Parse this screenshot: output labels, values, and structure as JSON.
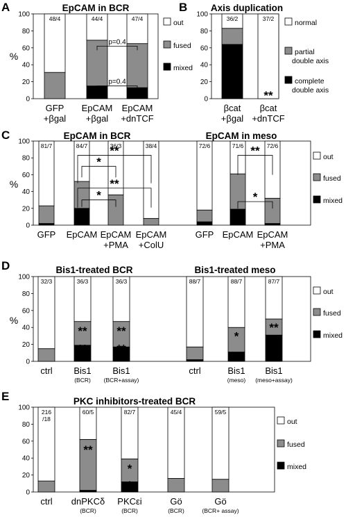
{
  "colors": {
    "out": "#ffffff",
    "fused": "#8c8c8c",
    "mixed": "#000000",
    "outline": "#000000"
  },
  "chart_data": [
    {
      "panel": "A",
      "type": "bar",
      "stacked": true,
      "title": "EpCAM in BCR",
      "ylabel": "%",
      "ylim": [
        0,
        100
      ],
      "yticks": [
        0,
        20,
        40,
        60,
        80,
        100
      ],
      "categories": [
        [
          "GFP",
          "+βgal"
        ],
        [
          "EpCAM",
          "+βgal"
        ],
        [
          "EpCAM",
          "+dnTCF"
        ]
      ],
      "n": [
        "48/4",
        "44/4",
        "47/4"
      ],
      "series": [
        {
          "name": "mixed",
          "values": [
            0,
            15,
            13
          ]
        },
        {
          "name": "fused",
          "values": [
            31,
            54,
            52
          ]
        },
        {
          "name": "out",
          "values": [
            69,
            31,
            35
          ]
        }
      ],
      "legend": [
        "out",
        "fused",
        "mixed"
      ],
      "annotations": [
        {
          "text": "p=0.4",
          "from": 1,
          "to": 2,
          "level": 62
        },
        {
          "text": "p=0.4",
          "from": 1,
          "to": 2,
          "level": 15
        }
      ]
    },
    {
      "panel": "B",
      "type": "bar",
      "stacked": true,
      "title": "Axis duplication",
      "ylim": [
        0,
        100
      ],
      "yticks": [
        0,
        20,
        40,
        60,
        80,
        100
      ],
      "categories": [
        [
          "βcat",
          "+βgal"
        ],
        [
          "βcat",
          "+dnTCF"
        ]
      ],
      "n": [
        "36/2",
        "37/2"
      ],
      "series": [
        {
          "name": "complete double axis",
          "values": [
            64,
            0
          ]
        },
        {
          "name": "partial double axis",
          "values": [
            19,
            0
          ]
        },
        {
          "name": "normal",
          "values": [
            17,
            100
          ]
        }
      ],
      "legend": [
        "normal",
        "partial double axis",
        "complete double axis"
      ],
      "stars": [
        {
          "cat": 1,
          "text": "**",
          "level": 4
        }
      ]
    },
    {
      "panel": "C",
      "type": "bar",
      "stacked": true,
      "titles": [
        "EpCAM in BCR",
        "EpCAM in meso"
      ],
      "ylabel": "%",
      "ylim": [
        0,
        100
      ],
      "yticks": [
        0,
        20,
        40,
        60,
        80,
        100
      ],
      "categories": [
        [
          "GFP"
        ],
        [
          "EpCAM"
        ],
        [
          "EpCAM",
          "+PMA"
        ],
        [
          "EpCAM",
          "+ColU"
        ],
        [
          "GFP"
        ],
        [
          "EpCAM"
        ],
        [
          "EpCAM",
          "+PMA"
        ]
      ],
      "n": [
        "81/7",
        "84/7",
        "36/3",
        "38/4",
        "72/6",
        "71/6",
        "72/6"
      ],
      "series": [
        {
          "name": "mixed",
          "values": [
            2,
            20,
            0,
            0,
            4,
            19,
            2
          ]
        },
        {
          "name": "fused",
          "values": [
            21,
            32,
            36,
            8,
            14,
            42,
            30
          ]
        },
        {
          "name": "out",
          "values": [
            77,
            48,
            64,
            92,
            82,
            39,
            68
          ]
        }
      ],
      "legend": [
        "out",
        "fused",
        "mixed"
      ],
      "brackets": [
        {
          "text": "*",
          "from": 1,
          "to": 2
        },
        {
          "text": "**",
          "from": 1,
          "to": 3
        },
        {
          "text": "*",
          "from": 1,
          "to": 2
        },
        {
          "text": "**",
          "from": 1,
          "to": 3
        },
        {
          "text": "**",
          "from": 5,
          "to": 6
        },
        {
          "text": "*",
          "from": 5,
          "to": 6
        }
      ]
    },
    {
      "panel": "D",
      "type": "bar",
      "stacked": true,
      "titles": [
        "Bis1-treated BCR",
        "Bis1-treated meso"
      ],
      "ylabel": "%",
      "ylim": [
        0,
        100
      ],
      "yticks": [
        0,
        20,
        40,
        60,
        80,
        100
      ],
      "categories": [
        [
          "ctrl"
        ],
        [
          "Bis1",
          "(BCR)"
        ],
        [
          "Bis1",
          "(BCR+assay)"
        ],
        [
          "ctrl"
        ],
        [
          "Bis1",
          "(meso)"
        ],
        [
          "Bis1",
          "(meso+assay)"
        ]
      ],
      "n": [
        "32/3",
        "36/3",
        "36/3",
        "88/7",
        "88/7",
        "87/7"
      ],
      "series": [
        {
          "name": "mixed",
          "values": [
            0,
            19,
            17,
            2,
            11,
            31
          ]
        },
        {
          "name": "fused",
          "values": [
            15,
            28,
            30,
            15,
            29,
            19
          ]
        },
        {
          "name": "out",
          "values": [
            85,
            53,
            53,
            83,
            60,
            50
          ]
        }
      ],
      "legend": [
        "out",
        "fused",
        "mixed"
      ],
      "stars": [
        {
          "cat": 1,
          "text": "**",
          "level": 36
        },
        {
          "cat": 1,
          "text": "**",
          "level": 15
        },
        {
          "cat": 2,
          "text": "**",
          "level": 36
        },
        {
          "cat": 2,
          "text": "**",
          "level": 15
        },
        {
          "cat": 4,
          "text": "*",
          "level": 30
        },
        {
          "cat": 5,
          "text": "**",
          "level": 40
        },
        {
          "cat": 5,
          "text": "*",
          "level": 22
        }
      ]
    },
    {
      "panel": "E",
      "type": "bar",
      "stacked": true,
      "title": "PKC inhibitors-treated BCR",
      "ylim": [
        0,
        100
      ],
      "yticks": [
        0,
        20,
        40,
        60,
        80,
        100
      ],
      "categories": [
        [
          "ctrl"
        ],
        [
          "dnPKCδ",
          "(BCR)"
        ],
        [
          "PKCεi",
          "(BCR)"
        ],
        [
          "Gö",
          "(BCR)"
        ],
        [
          "Gö",
          "(BCR+ assay)"
        ]
      ],
      "n": [
        [
          "216",
          "/18"
        ],
        "60/5",
        "82/7",
        "45/4",
        "59/5"
      ],
      "series": [
        {
          "name": "mixed",
          "values": [
            0,
            2,
            12,
            0,
            0
          ]
        },
        {
          "name": "fused",
          "values": [
            13,
            60,
            27,
            16,
            15
          ]
        },
        {
          "name": "out",
          "values": [
            87,
            38,
            61,
            84,
            85
          ]
        }
      ],
      "legend": [
        "out",
        "fused",
        "mixed"
      ],
      "stars": [
        {
          "cat": 1,
          "text": "**",
          "level": 50
        },
        {
          "cat": 2,
          "text": "*",
          "level": 28
        },
        {
          "cat": 2,
          "text": "*",
          "level": 8
        }
      ]
    }
  ]
}
